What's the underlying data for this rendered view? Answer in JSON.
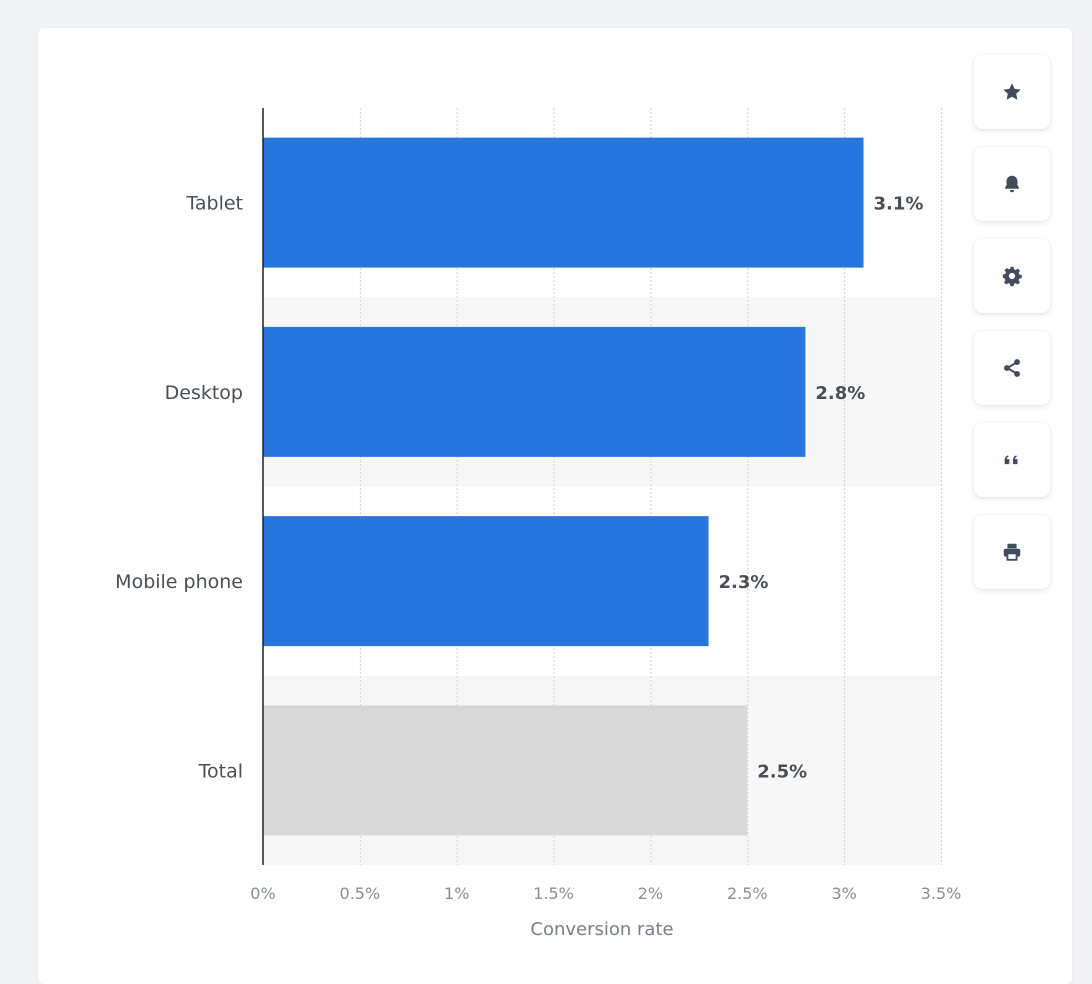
{
  "chart_data": {
    "type": "bar",
    "orientation": "horizontal",
    "categories": [
      "Tablet",
      "Desktop",
      "Mobile phone",
      "Total"
    ],
    "values": [
      3.1,
      2.8,
      2.3,
      2.5
    ],
    "data_labels": [
      "3.1%",
      "2.8%",
      "2.3%",
      "2.5%"
    ],
    "bar_colors": [
      "#2876dd",
      "#2876dd",
      "#2876dd",
      "#d8d8d8"
    ],
    "xlabel": "Conversion rate",
    "xlim": [
      0,
      3.5
    ],
    "x_ticks": [
      0,
      0.5,
      1,
      1.5,
      2,
      2.5,
      3,
      3.5
    ],
    "x_tick_labels": [
      "0%",
      "0.5%",
      "1%",
      "1.5%",
      "2%",
      "2.5%",
      "3%",
      "3.5%"
    ],
    "grid": true,
    "legend": "none"
  },
  "toolbar": {
    "items": [
      {
        "icon": "star-icon",
        "name": "favorite-button"
      },
      {
        "icon": "bell-icon",
        "name": "notification-button"
      },
      {
        "icon": "gear-icon",
        "name": "settings-button"
      },
      {
        "icon": "share-icon",
        "name": "share-button"
      },
      {
        "icon": "quote-icon",
        "name": "cite-button"
      },
      {
        "icon": "print-icon",
        "name": "print-button"
      }
    ]
  },
  "colors": {
    "accent": "#2876dd",
    "total_bar": "#d8d8d8",
    "icon": "#3f4d5e",
    "label_text": "#4a4f55",
    "tick_text": "#8a8f96"
  }
}
